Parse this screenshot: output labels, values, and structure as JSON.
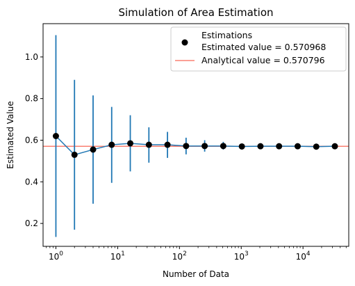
{
  "chart_data": {
    "type": "scatter",
    "title": "Simulation of Area Estimation",
    "xlabel": "Number of Data",
    "ylabel": "Estimated Value",
    "xscale": "log",
    "xlim": [
      0.62,
      55000
    ],
    "ylim": [
      0.09,
      1.16
    ],
    "xticks": [
      {
        "value": 1,
        "base": "10",
        "exp": "0"
      },
      {
        "value": 10,
        "base": "10",
        "exp": "1"
      },
      {
        "value": 100,
        "base": "10",
        "exp": "2"
      },
      {
        "value": 1000,
        "base": "10",
        "exp": "3"
      },
      {
        "value": 10000,
        "base": "10",
        "exp": "4"
      }
    ],
    "yticks": [
      {
        "value": 0.2,
        "label": "0.2"
      },
      {
        "value": 0.4,
        "label": "0.4"
      },
      {
        "value": 0.6,
        "label": "0.6"
      },
      {
        "value": 0.8,
        "label": "0.8"
      },
      {
        "value": 1.0,
        "label": "1.0"
      }
    ],
    "grid": false,
    "legend_position": "top-right",
    "series": [
      {
        "name": "Estimations",
        "kind": "scatter-errorbar",
        "color": "#000000",
        "line_color": "#1f77b4",
        "errorbar_color": "#1f77b4",
        "points": [
          {
            "x": 1,
            "y": 0.62,
            "lo": 0.135,
            "hi": 1.105
          },
          {
            "x": 2,
            "y": 0.53,
            "lo": 0.17,
            "hi": 0.89
          },
          {
            "x": 4,
            "y": 0.555,
            "lo": 0.295,
            "hi": 0.815
          },
          {
            "x": 8,
            "y": 0.578,
            "lo": 0.395,
            "hi": 0.76
          },
          {
            "x": 16,
            "y": 0.585,
            "lo": 0.45,
            "hi": 0.72
          },
          {
            "x": 32,
            "y": 0.578,
            "lo": 0.492,
            "hi": 0.662
          },
          {
            "x": 64,
            "y": 0.578,
            "lo": 0.515,
            "hi": 0.64
          },
          {
            "x": 128,
            "y": 0.572,
            "lo": 0.532,
            "hi": 0.612
          },
          {
            "x": 256,
            "y": 0.572,
            "lo": 0.545,
            "hi": 0.6
          },
          {
            "x": 512,
            "y": 0.572,
            "lo": 0.555,
            "hi": 0.592
          },
          {
            "x": 1024,
            "y": 0.57,
            "lo": 0.558,
            "hi": 0.583
          },
          {
            "x": 2048,
            "y": 0.571,
            "lo": 0.562,
            "hi": 0.58
          },
          {
            "x": 4096,
            "y": 0.571,
            "lo": 0.565,
            "hi": 0.578
          },
          {
            "x": 8192,
            "y": 0.571,
            "lo": 0.566,
            "hi": 0.576
          },
          {
            "x": 16384,
            "y": 0.569,
            "lo": 0.566,
            "hi": 0.573
          },
          {
            "x": 32768,
            "y": 0.571,
            "lo": 0.569,
            "hi": 0.573
          }
        ]
      },
      {
        "name": "Analytical value = 0.570796",
        "kind": "hline",
        "color": "#fa8072",
        "y": 0.570796
      }
    ],
    "legend": [
      {
        "label": "Estimations",
        "sublabel": "Estimated value = 0.570968",
        "marker": "dot"
      },
      {
        "label": "Analytical value = 0.570796",
        "marker": "line"
      }
    ]
  }
}
